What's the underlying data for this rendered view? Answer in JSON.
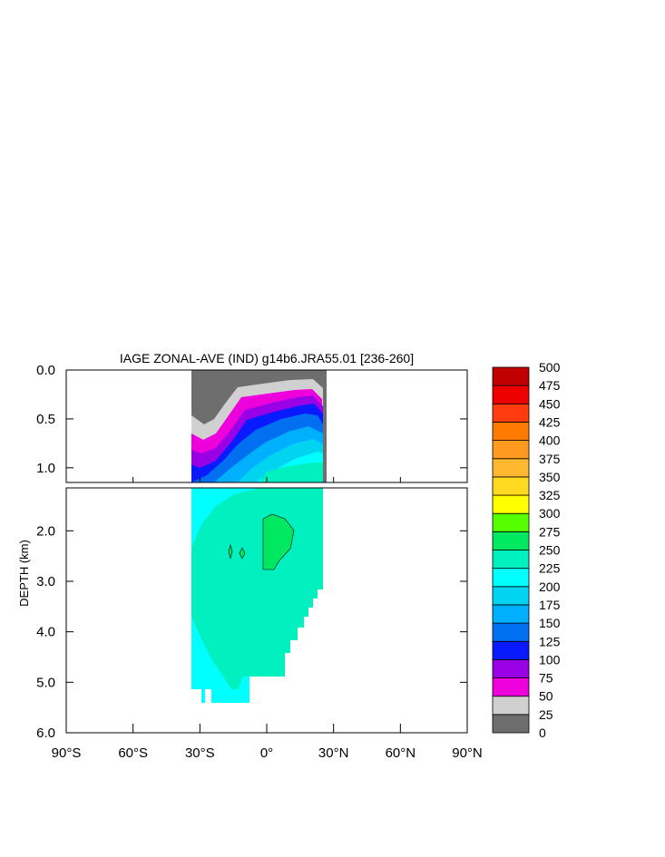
{
  "chart_data": {
    "type": "contour",
    "title": "IAGE ZONAL-AVE (IND) g14b6.JRA55.01 [236-260]",
    "ylabel": "DEPTH (km)",
    "xlabel": "",
    "x_ticks": [
      "90°S",
      "60°S",
      "30°S",
      "0°",
      "30°N",
      "60°N",
      "90°N"
    ],
    "x_tick_values": [
      -90,
      -60,
      -30,
      0,
      30,
      60,
      90
    ],
    "xlim": [
      -90,
      90
    ],
    "upper_panel": {
      "ylim": [
        0.0,
        1.15
      ],
      "y_ticks": [
        "0.0",
        "0.5",
        "1.0"
      ],
      "y_tick_values": [
        0.0,
        0.5,
        1.0
      ]
    },
    "lower_panel": {
      "ylim": [
        1.15,
        6.0
      ],
      "y_ticks": [
        "2.0",
        "3.0",
        "4.0",
        "5.0",
        "6.0"
      ],
      "y_tick_values": [
        2.0,
        3.0,
        4.0,
        5.0,
        6.0
      ]
    },
    "colorbar": {
      "levels": [
        "0",
        "25",
        "50",
        "75",
        "100",
        "125",
        "150",
        "175",
        "200",
        "225",
        "250",
        "275",
        "300",
        "325",
        "350",
        "375",
        "400",
        "425",
        "450",
        "475",
        "500"
      ],
      "colors": [
        "#6e6e6e",
        "#d0d0d0",
        "#ee00dd",
        "#9a00e6",
        "#0a1aff",
        "#0070f0",
        "#00b0ff",
        "#00d4f0",
        "#00ffff",
        "#00f0c0",
        "#00e860",
        "#55ff00",
        "#ffff00",
        "#ffd820",
        "#ffb830",
        "#ff9a20",
        "#ff7a00",
        "#ff3b10",
        "#ee0000",
        "#c00000"
      ]
    },
    "data_extent": {
      "lat_min": -35,
      "lat_max": 25,
      "depth_max_km": 5.4
    }
  }
}
